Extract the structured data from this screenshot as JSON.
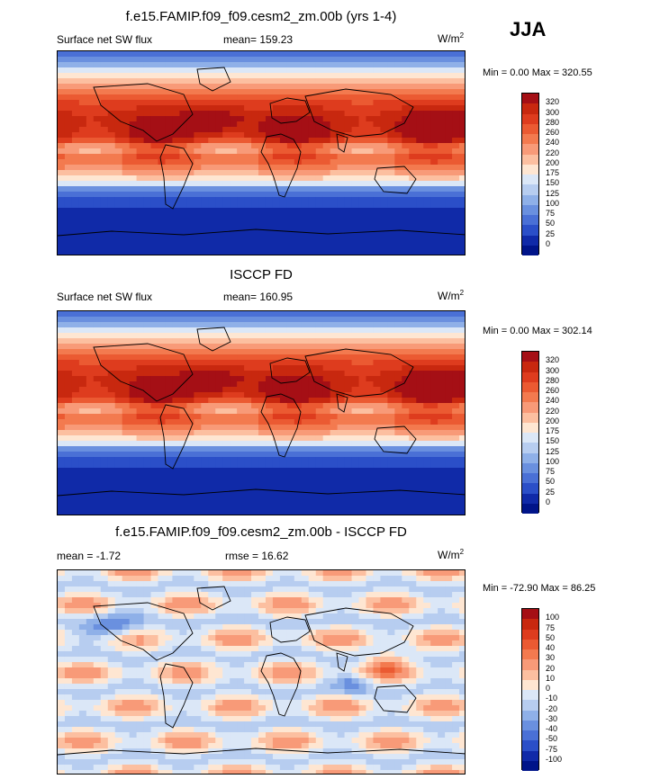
{
  "season": "JJA",
  "chart_data": [
    {
      "type": "heatmap",
      "title": "f.e15.FAMIP.f09_f09.cesm2_zm.00b (yrs 1-4)",
      "left_label": "Surface net SW flux",
      "center_label": "mean= 159.23",
      "units_base": "W/m",
      "units_exp": "2",
      "minmax": "Min =   0.00 Max = 320.55",
      "levels": [
        "320",
        "300",
        "280",
        "260",
        "240",
        "220",
        "200",
        "175",
        "150",
        "125",
        "100",
        "75",
        "50",
        "25",
        "0"
      ],
      "colors": [
        "#a50f15",
        "#c8280f",
        "#de3c1e",
        "#eb5a32",
        "#f37a4f",
        "#f89a78",
        "#fcbfa0",
        "#fee6d2",
        "#dbe7f7",
        "#b7cdf0",
        "#8fb0e8",
        "#6a90df",
        "#4a70d6",
        "#2b4fc8",
        "#102aa8",
        "#001489"
      ],
      "field": "absolute"
    },
    {
      "type": "heatmap",
      "title": "ISCCP FD",
      "left_label": "Surface net SW flux",
      "center_label": "mean= 160.95",
      "units_base": "W/m",
      "units_exp": "2",
      "minmax": "Min =   0.00 Max = 302.14",
      "levels": [
        "320",
        "300",
        "280",
        "260",
        "240",
        "220",
        "200",
        "175",
        "150",
        "125",
        "100",
        "75",
        "50",
        "25",
        "0"
      ],
      "colors": [
        "#a50f15",
        "#c8280f",
        "#de3c1e",
        "#eb5a32",
        "#f37a4f",
        "#f89a78",
        "#fcbfa0",
        "#fee6d2",
        "#dbe7f7",
        "#b7cdf0",
        "#8fb0e8",
        "#6a90df",
        "#4a70d6",
        "#2b4fc8",
        "#102aa8",
        "#001489"
      ],
      "field": "absolute"
    },
    {
      "type": "heatmap",
      "title": "f.e15.FAMIP.f09_f09.cesm2_zm.00b - ISCCP FD",
      "left_label": "mean =  -1.72",
      "center_label": "rmse =  16.62",
      "units_base": "W/m",
      "units_exp": "2",
      "minmax": "Min = -72.90 Max =  86.25",
      "levels": [
        "100",
        "75",
        "50",
        "40",
        "30",
        "20",
        "10",
        "0",
        "-10",
        "-20",
        "-30",
        "-40",
        "-50",
        "-75",
        "-100"
      ],
      "colors": [
        "#a50f15",
        "#c8280f",
        "#de3c1e",
        "#eb5a32",
        "#f37a4f",
        "#f89a78",
        "#fcbfa0",
        "#fee6d2",
        "#dbe7f7",
        "#b7cdf0",
        "#8fb0e8",
        "#6a90df",
        "#4a70d6",
        "#2b4fc8",
        "#102aa8",
        "#001489"
      ],
      "field": "difference"
    }
  ]
}
